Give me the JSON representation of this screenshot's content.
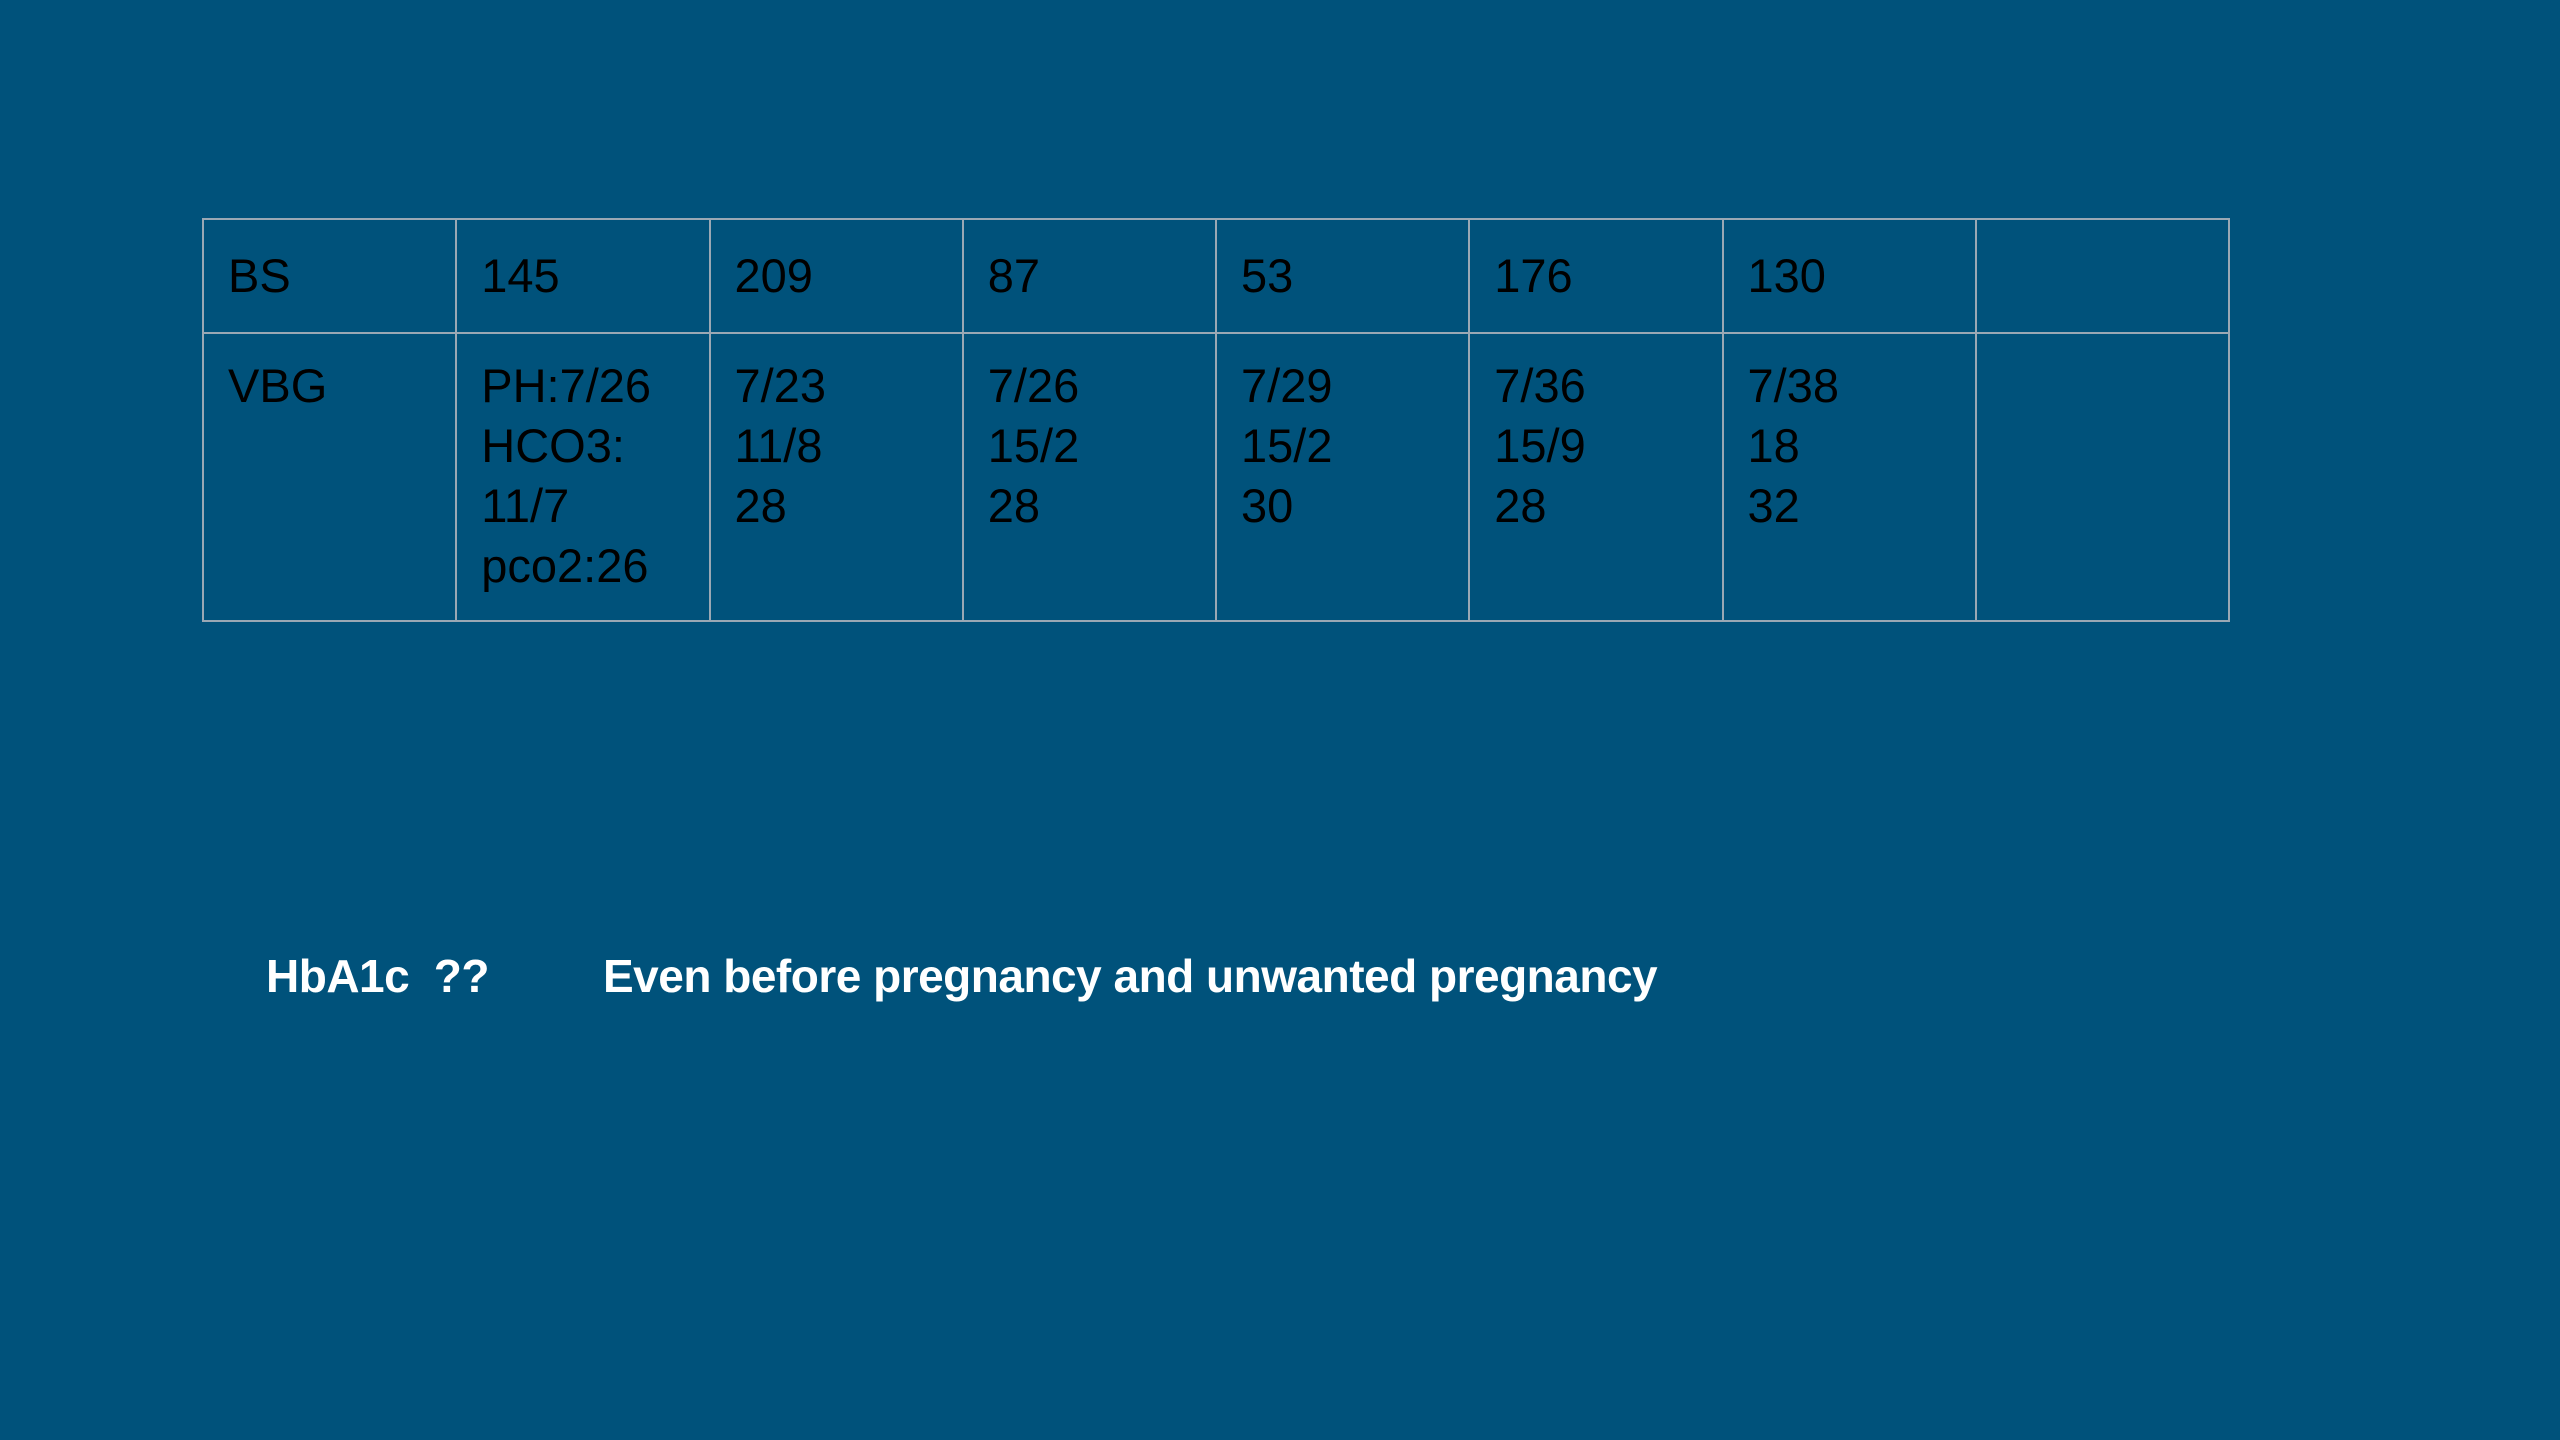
{
  "table": {
    "rows": [
      {
        "label": "BS",
        "cells": [
          "145",
          "209",
          "87",
          "53",
          "176",
          "130",
          ""
        ]
      },
      {
        "label": "VBG",
        "cells": [
          "PH:7/26\nHCO3:\n11/7\npco2:26",
          "7/23\n11/8\n28",
          "7/26\n15/2\n28",
          "7/29\n15/2\n30",
          "7/36\n15/9\n28",
          "7/38\n18\n32",
          ""
        ]
      }
    ]
  },
  "notes": {
    "hba1c": "HbA1c  ??",
    "comment": "Even before pregnancy and unwanted pregnancy"
  },
  "colors": {
    "background": "#00527b",
    "table_border": "#9aa8b4",
    "table_text": "#000000",
    "note_text": "#ffffff"
  }
}
